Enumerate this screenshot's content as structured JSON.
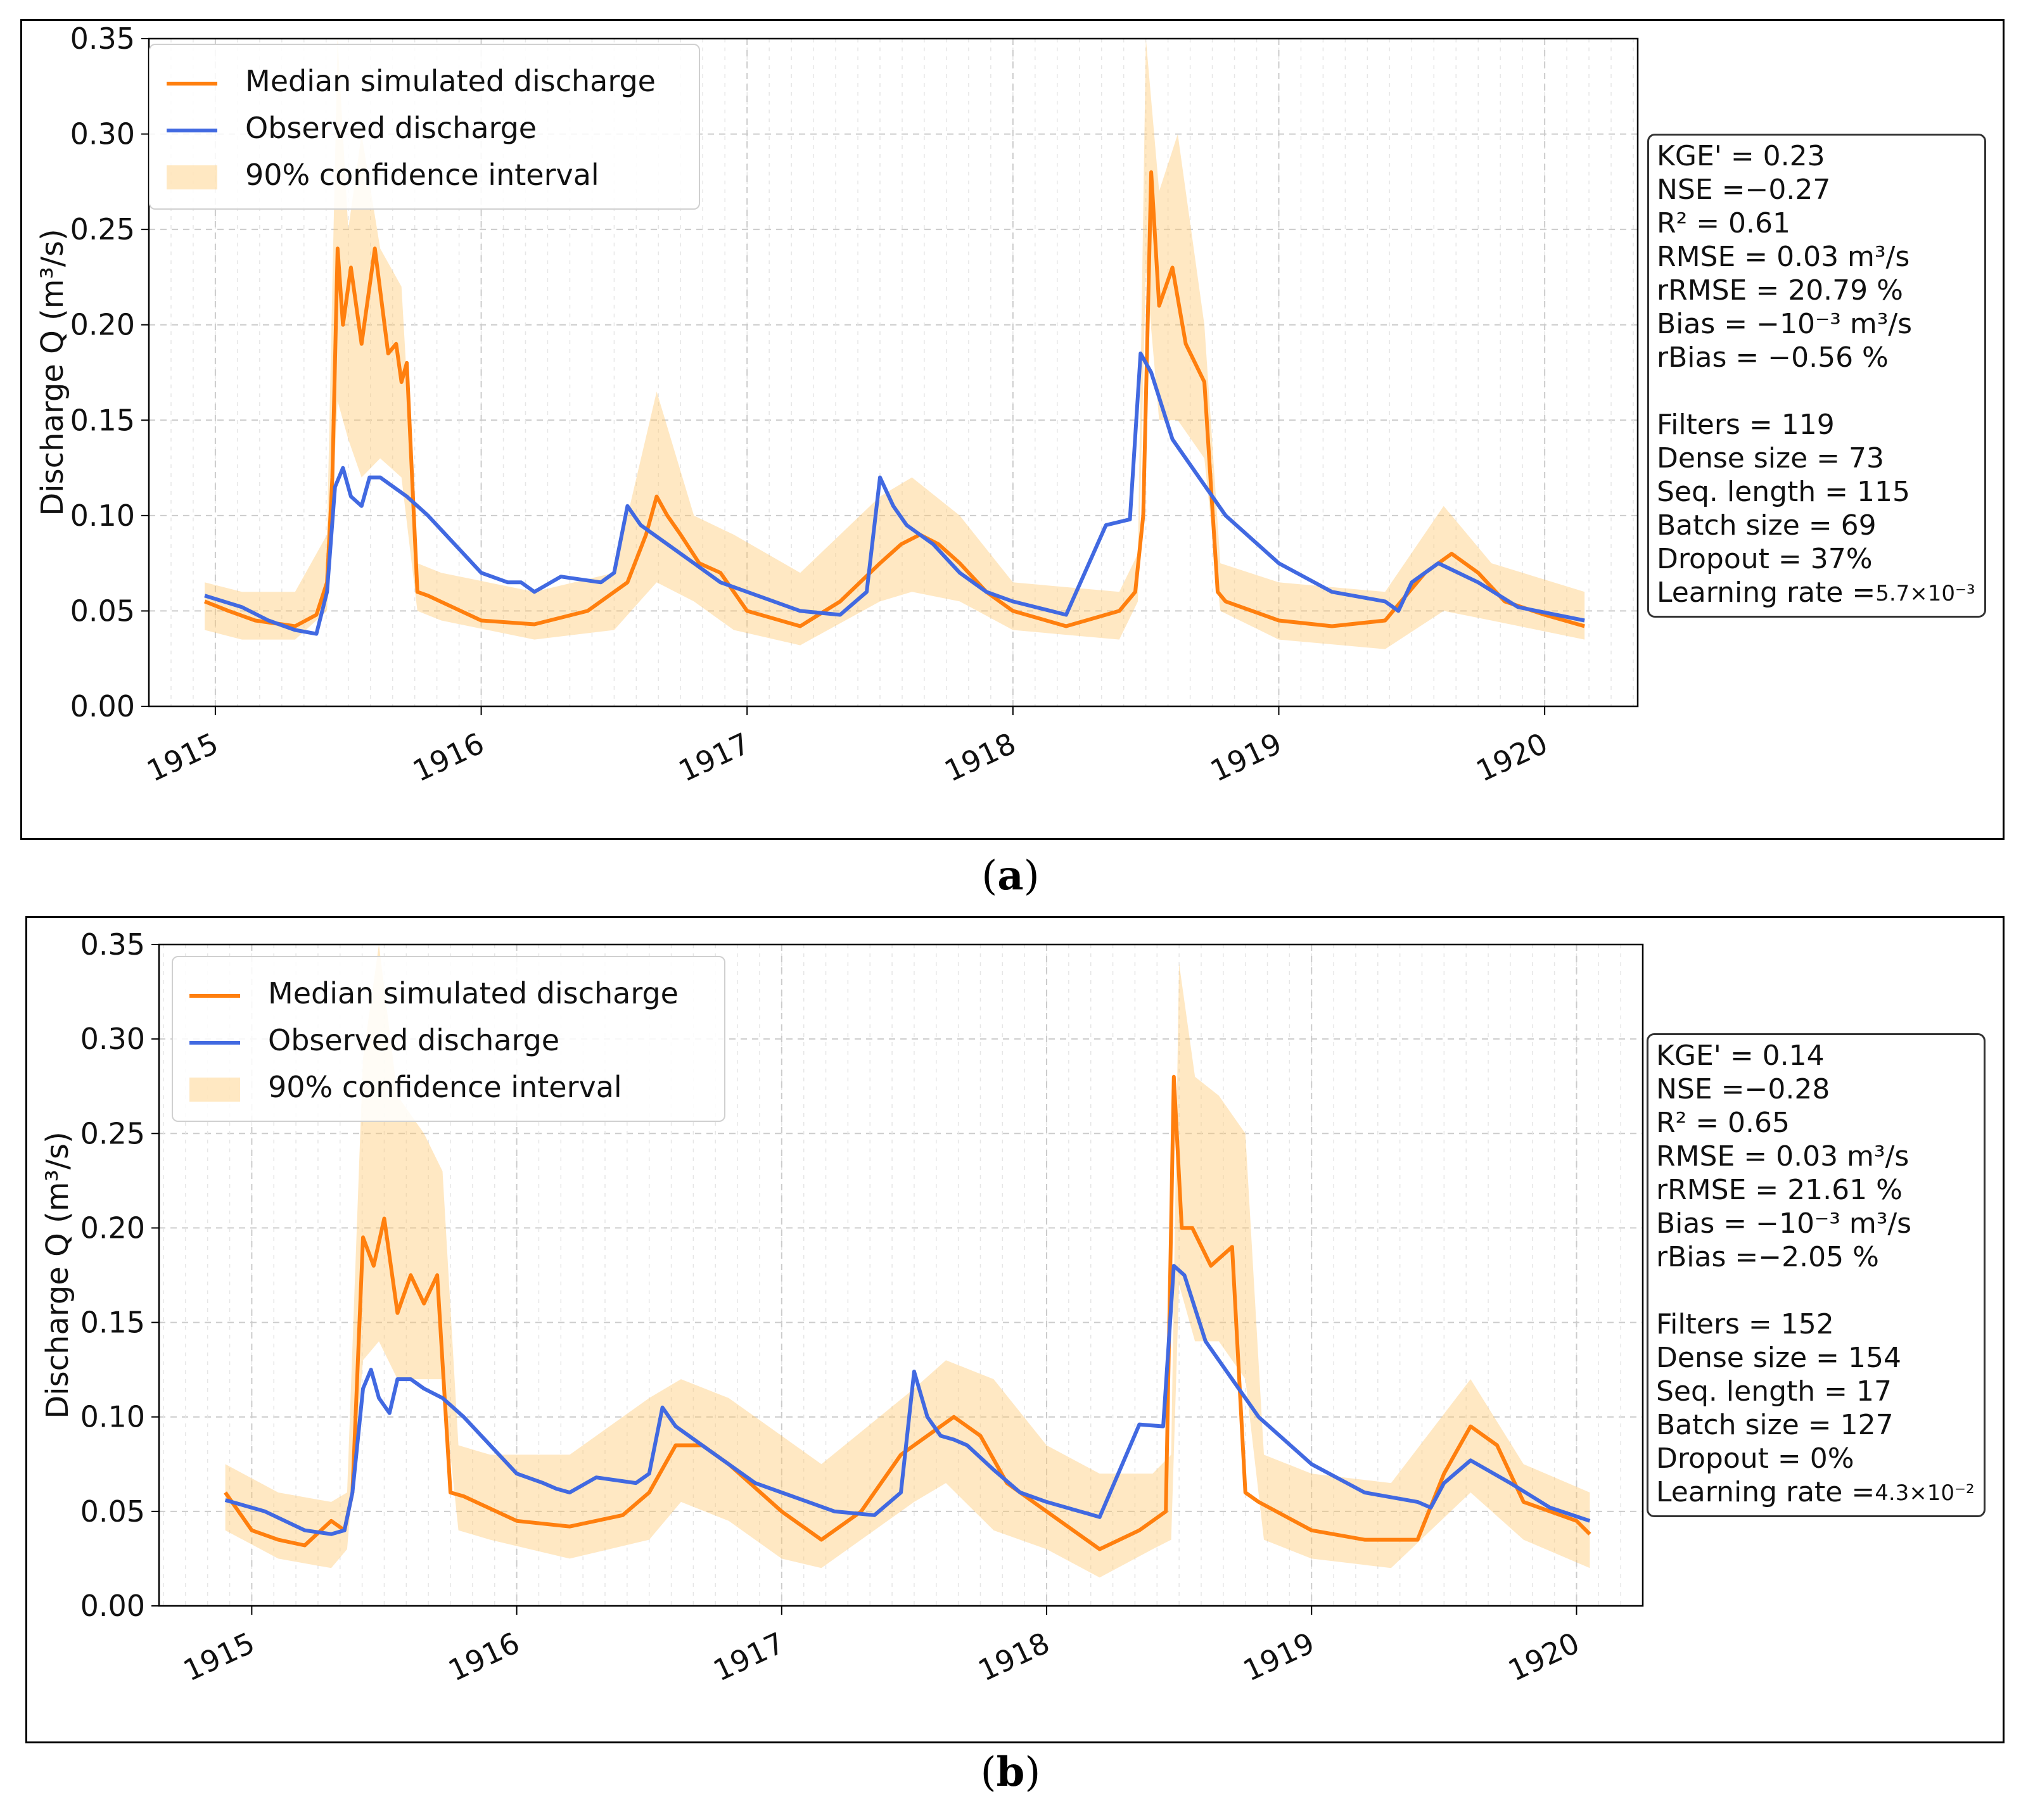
{
  "colors": {
    "median": "#ff7f0e",
    "observed": "#4169e1",
    "ci_fill": "#ffc870",
    "grid": "#cccccc"
  },
  "captions": {
    "a_letter": "a",
    "b_letter": "b",
    "open": "(",
    "close": ")"
  },
  "panels": [
    {
      "id": "a",
      "metrics": {
        "kge": "KGE' = 0.23",
        "nse": "NSE =−0.27",
        "r2": "R² = 0.61",
        "rmse": "RMSE = 0.03 m³/s",
        "rrmse": "rRMSE = 20.79 %",
        "bias": "Bias = −10⁻³ m³/s",
        "rbias": "rBias = −0.56 %",
        "filters": "Filters = 119",
        "dense": "Dense size = 73",
        "seq": "Seq. length = 115",
        "batch": "Batch size = 69",
        "dropout": "Dropout = 37%",
        "lr_label": "Learning rate =",
        "lr_value": "5.7×10⁻³"
      }
    },
    {
      "id": "b",
      "metrics": {
        "kge": "KGE' = 0.14",
        "nse": "NSE =−0.28",
        "r2": "R² = 0.65",
        "rmse": "RMSE = 0.03 m³/s",
        "rrmse": "rRMSE = 21.61 %",
        "bias": "Bias = −10⁻³ m³/s",
        "rbias": "rBias =−2.05  %",
        "filters": "Filters = 152",
        "dense": "Dense size = 154",
        "seq": "Seq. length = 17",
        "batch": "Batch size = 127",
        "dropout": "Dropout = 0%",
        "lr_label": "Learning rate =",
        "lr_value": "4.3×10⁻²"
      }
    }
  ],
  "chart_data": [
    {
      "type": "line",
      "ylabel": "Discharge Q (m³/s)",
      "xlabel": "",
      "ylim": [
        0,
        0.35
      ],
      "xlim": [
        1914.75,
        1920.35
      ],
      "grid": true,
      "legend_position": "top-left",
      "y_ticks": [
        "0.00",
        "0.05",
        "0.10",
        "0.15",
        "0.20",
        "0.25",
        "0.30",
        "0.35"
      ],
      "x_ticks": [
        "1915",
        "1916",
        "1917",
        "1918",
        "1919",
        "1920"
      ],
      "series": [
        {
          "name": "Median simulated discharge",
          "x": [
            1914.96,
            1915.05,
            1915.15,
            1915.3,
            1915.38,
            1915.42,
            1915.44,
            1915.46,
            1915.48,
            1915.51,
            1915.55,
            1915.6,
            1915.65,
            1915.68,
            1915.7,
            1915.72,
            1915.76,
            1915.8,
            1916.0,
            1916.2,
            1916.4,
            1916.55,
            1916.62,
            1916.66,
            1916.7,
            1916.75,
            1916.82,
            1916.9,
            1917.0,
            1917.2,
            1917.35,
            1917.5,
            1917.58,
            1917.65,
            1917.72,
            1917.8,
            1917.9,
            1918.0,
            1918.2,
            1918.4,
            1918.46,
            1918.49,
            1918.52,
            1918.55,
            1918.6,
            1918.65,
            1918.72,
            1918.77,
            1918.8,
            1919.0,
            1919.2,
            1919.4,
            1919.55,
            1919.65,
            1919.75,
            1919.85,
            1920.0,
            1920.15
          ],
          "values": [
            0.055,
            0.05,
            0.045,
            0.042,
            0.048,
            0.065,
            0.12,
            0.24,
            0.2,
            0.23,
            0.19,
            0.24,
            0.185,
            0.19,
            0.17,
            0.18,
            0.06,
            0.058,
            0.045,
            0.043,
            0.05,
            0.065,
            0.09,
            0.11,
            0.1,
            0.09,
            0.075,
            0.07,
            0.05,
            0.042,
            0.055,
            0.075,
            0.085,
            0.09,
            0.085,
            0.075,
            0.06,
            0.05,
            0.042,
            0.05,
            0.06,
            0.1,
            0.28,
            0.21,
            0.23,
            0.19,
            0.17,
            0.06,
            0.055,
            0.045,
            0.042,
            0.045,
            0.07,
            0.08,
            0.07,
            0.055,
            0.048,
            0.042
          ]
        },
        {
          "name": "Observed discharge",
          "x": [
            1914.96,
            1915.1,
            1915.2,
            1915.3,
            1915.38,
            1915.42,
            1915.45,
            1915.48,
            1915.51,
            1915.55,
            1915.58,
            1915.62,
            1915.67,
            1915.72,
            1915.8,
            1916.0,
            1916.1,
            1916.15,
            1916.2,
            1916.3,
            1916.45,
            1916.5,
            1916.55,
            1916.6,
            1916.7,
            1916.8,
            1916.9,
            1917.0,
            1917.2,
            1917.35,
            1917.45,
            1917.5,
            1917.55,
            1917.6,
            1917.65,
            1917.7,
            1917.8,
            1917.9,
            1918.0,
            1918.2,
            1918.35,
            1918.44,
            1918.48,
            1918.52,
            1918.6,
            1918.7,
            1918.8,
            1919.0,
            1919.2,
            1919.4,
            1919.45,
            1919.5,
            1919.6,
            1919.75,
            1919.9,
            1920.15
          ],
          "values": [
            0.058,
            0.052,
            0.045,
            0.04,
            0.038,
            0.06,
            0.115,
            0.125,
            0.11,
            0.105,
            0.12,
            0.12,
            0.115,
            0.11,
            0.1,
            0.07,
            0.065,
            0.065,
            0.06,
            0.068,
            0.065,
            0.07,
            0.105,
            0.095,
            0.085,
            0.075,
            0.065,
            0.06,
            0.05,
            0.048,
            0.06,
            0.12,
            0.105,
            0.095,
            0.09,
            0.085,
            0.07,
            0.06,
            0.055,
            0.048,
            0.095,
            0.098,
            0.185,
            0.175,
            0.14,
            0.12,
            0.1,
            0.075,
            0.06,
            0.055,
            0.05,
            0.065,
            0.075,
            0.065,
            0.052,
            0.045
          ]
        },
        {
          "name": "90% confidence interval",
          "x": [
            1914.96,
            1915.1,
            1915.3,
            1915.42,
            1915.46,
            1915.5,
            1915.55,
            1915.62,
            1915.7,
            1915.76,
            1915.85,
            1916.2,
            1916.5,
            1916.66,
            1916.8,
            1916.95,
            1917.2,
            1917.5,
            1917.62,
            1917.8,
            1918.0,
            1918.4,
            1918.47,
            1918.5,
            1918.55,
            1918.62,
            1918.72,
            1918.78,
            1919.0,
            1919.4,
            1919.62,
            1919.8,
            1920.15
          ],
          "lower": [
            0.04,
            0.035,
            0.035,
            0.05,
            0.16,
            0.14,
            0.12,
            0.13,
            0.12,
            0.05,
            0.045,
            0.035,
            0.04,
            0.065,
            0.055,
            0.04,
            0.032,
            0.055,
            0.06,
            0.055,
            0.04,
            0.035,
            0.055,
            0.23,
            0.15,
            0.15,
            0.13,
            0.05,
            0.035,
            0.03,
            0.05,
            0.045,
            0.035
          ],
          "upper": [
            0.065,
            0.06,
            0.06,
            0.09,
            0.35,
            0.25,
            0.3,
            0.24,
            0.22,
            0.075,
            0.07,
            0.06,
            0.07,
            0.165,
            0.1,
            0.09,
            0.07,
            0.11,
            0.12,
            0.1,
            0.065,
            0.06,
            0.08,
            0.35,
            0.27,
            0.3,
            0.2,
            0.075,
            0.065,
            0.06,
            0.105,
            0.075,
            0.06
          ]
        }
      ]
    },
    {
      "type": "line",
      "ylabel": "Discharge Q (m³/s)",
      "xlabel": "",
      "ylim": [
        0,
        0.35
      ],
      "xlim": [
        1914.65,
        1920.25
      ],
      "grid": true,
      "legend_position": "top-left",
      "y_ticks": [
        "0.00",
        "0.05",
        "0.10",
        "0.15",
        "0.20",
        "0.25",
        "0.30",
        "0.35"
      ],
      "x_ticks": [
        "1915",
        "1916",
        "1917",
        "1918",
        "1919",
        "1920"
      ],
      "series": [
        {
          "name": "Median simulated discharge",
          "x": [
            1914.9,
            1915.0,
            1915.1,
            1915.2,
            1915.3,
            1915.35,
            1915.38,
            1915.42,
            1915.46,
            1915.5,
            1915.55,
            1915.6,
            1915.65,
            1915.7,
            1915.75,
            1915.8,
            1916.0,
            1916.2,
            1916.4,
            1916.5,
            1916.6,
            1916.7,
            1916.8,
            1917.0,
            1917.15,
            1917.3,
            1917.45,
            1917.55,
            1917.65,
            1917.75,
            1917.85,
            1918.0,
            1918.2,
            1918.35,
            1918.4,
            1918.45,
            1918.48,
            1918.51,
            1918.55,
            1918.62,
            1918.7,
            1918.75,
            1918.8,
            1919.0,
            1919.2,
            1919.4,
            1919.5,
            1919.6,
            1919.7,
            1919.8,
            1920.0,
            1920.05
          ],
          "values": [
            0.06,
            0.04,
            0.035,
            0.032,
            0.045,
            0.04,
            0.06,
            0.195,
            0.18,
            0.205,
            0.155,
            0.175,
            0.16,
            0.175,
            0.06,
            0.058,
            0.045,
            0.042,
            0.048,
            0.06,
            0.085,
            0.085,
            0.075,
            0.05,
            0.035,
            0.05,
            0.08,
            0.09,
            0.1,
            0.09,
            0.065,
            0.05,
            0.03,
            0.04,
            0.045,
            0.05,
            0.28,
            0.2,
            0.2,
            0.18,
            0.19,
            0.06,
            0.055,
            0.04,
            0.035,
            0.035,
            0.07,
            0.095,
            0.085,
            0.055,
            0.045,
            0.038
          ]
        },
        {
          "name": "Observed discharge",
          "x": [
            1914.9,
            1915.05,
            1915.2,
            1915.3,
            1915.35,
            1915.38,
            1915.42,
            1915.45,
            1915.48,
            1915.52,
            1915.55,
            1915.6,
            1915.65,
            1915.72,
            1915.8,
            1916.0,
            1916.1,
            1916.15,
            1916.2,
            1916.3,
            1916.45,
            1916.5,
            1916.55,
            1916.6,
            1916.7,
            1916.8,
            1916.9,
            1917.0,
            1917.2,
            1917.35,
            1917.45,
            1917.5,
            1917.55,
            1917.6,
            1917.65,
            1917.7,
            1917.8,
            1917.9,
            1918.0,
            1918.2,
            1918.35,
            1918.44,
            1918.48,
            1918.52,
            1918.6,
            1918.7,
            1918.8,
            1919.0,
            1919.2,
            1919.4,
            1919.45,
            1919.5,
            1919.6,
            1919.75,
            1919.9,
            1920.05
          ],
          "values": [
            0.056,
            0.05,
            0.04,
            0.038,
            0.04,
            0.06,
            0.115,
            0.125,
            0.11,
            0.102,
            0.12,
            0.12,
            0.115,
            0.11,
            0.1,
            0.07,
            0.065,
            0.062,
            0.06,
            0.068,
            0.065,
            0.07,
            0.105,
            0.095,
            0.085,
            0.075,
            0.065,
            0.06,
            0.05,
            0.048,
            0.06,
            0.124,
            0.1,
            0.09,
            0.088,
            0.085,
            0.072,
            0.06,
            0.055,
            0.047,
            0.096,
            0.095,
            0.18,
            0.175,
            0.14,
            0.12,
            0.1,
            0.075,
            0.06,
            0.055,
            0.052,
            0.065,
            0.077,
            0.065,
            0.052,
            0.045
          ]
        },
        {
          "name": "90% confidence interval",
          "x": [
            1914.9,
            1915.1,
            1915.3,
            1915.36,
            1915.42,
            1915.48,
            1915.55,
            1915.65,
            1915.72,
            1915.78,
            1915.9,
            1916.2,
            1916.5,
            1916.62,
            1916.8,
            1917.0,
            1917.15,
            1917.5,
            1917.62,
            1917.8,
            1918.0,
            1918.2,
            1918.4,
            1918.47,
            1918.5,
            1918.56,
            1918.65,
            1918.75,
            1918.82,
            1919.0,
            1919.3,
            1919.6,
            1919.8,
            1920.05
          ],
          "lower": [
            0.04,
            0.025,
            0.02,
            0.03,
            0.13,
            0.14,
            0.12,
            0.12,
            0.12,
            0.04,
            0.035,
            0.025,
            0.035,
            0.055,
            0.045,
            0.025,
            0.02,
            0.055,
            0.065,
            0.04,
            0.03,
            0.015,
            0.03,
            0.035,
            0.17,
            0.14,
            0.14,
            0.12,
            0.035,
            0.025,
            0.02,
            0.06,
            0.035,
            0.02
          ],
          "upper": [
            0.075,
            0.06,
            0.055,
            0.06,
            0.29,
            0.35,
            0.27,
            0.25,
            0.23,
            0.085,
            0.08,
            0.08,
            0.11,
            0.12,
            0.11,
            0.09,
            0.075,
            0.115,
            0.13,
            0.12,
            0.085,
            0.07,
            0.07,
            0.08,
            0.34,
            0.28,
            0.27,
            0.25,
            0.08,
            0.07,
            0.065,
            0.12,
            0.075,
            0.06
          ]
        }
      ]
    }
  ]
}
